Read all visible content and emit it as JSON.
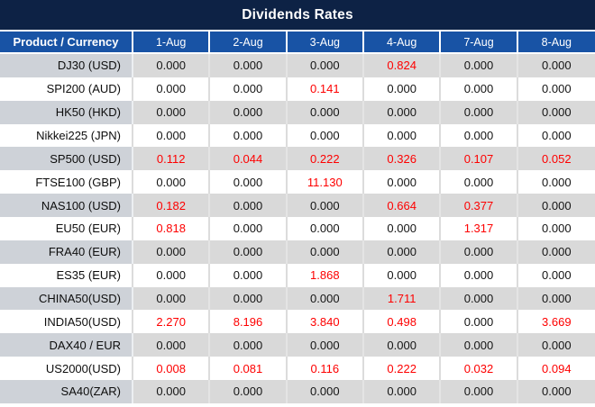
{
  "title": "Dividends Rates",
  "colors": {
    "title_bar_bg": "#0d2245",
    "header_bg": "#1853a5",
    "row_gray_bg": "#d9d9d9",
    "product_gray_bg": "#ced2d8",
    "value_black": "#141414",
    "value_red": "#fe0000",
    "header_text": "#ffffff"
  },
  "table": {
    "product_header": "Product / Currency",
    "date_headers": [
      "1-Aug",
      "2-Aug",
      "3-Aug",
      "4-Aug",
      "7-Aug",
      "8-Aug"
    ],
    "rows": [
      {
        "product": "DJ30 (USD)",
        "values": [
          "0.000",
          "0.000",
          "0.000",
          "0.824",
          "0.000",
          "0.000"
        ],
        "red": [
          false,
          false,
          false,
          true,
          false,
          false
        ]
      },
      {
        "product": "SPI200 (AUD)",
        "values": [
          "0.000",
          "0.000",
          "0.141",
          "0.000",
          "0.000",
          "0.000"
        ],
        "red": [
          false,
          false,
          true,
          false,
          false,
          false
        ]
      },
      {
        "product": "HK50 (HKD)",
        "values": [
          "0.000",
          "0.000",
          "0.000",
          "0.000",
          "0.000",
          "0.000"
        ],
        "red": [
          false,
          false,
          false,
          false,
          false,
          false
        ]
      },
      {
        "product": "Nikkei225 (JPN)",
        "values": [
          "0.000",
          "0.000",
          "0.000",
          "0.000",
          "0.000",
          "0.000"
        ],
        "red": [
          false,
          false,
          false,
          false,
          false,
          false
        ]
      },
      {
        "product": "SP500 (USD)",
        "values": [
          "0.112",
          "0.044",
          "0.222",
          "0.326",
          "0.107",
          "0.052"
        ],
        "red": [
          true,
          true,
          true,
          true,
          true,
          true
        ]
      },
      {
        "product": "FTSE100 (GBP)",
        "values": [
          "0.000",
          "0.000",
          "11.130",
          "0.000",
          "0.000",
          "0.000"
        ],
        "red": [
          false,
          false,
          true,
          false,
          false,
          false
        ]
      },
      {
        "product": "NAS100 (USD)",
        "values": [
          "0.182",
          "0.000",
          "0.000",
          "0.664",
          "0.377",
          "0.000"
        ],
        "red": [
          true,
          false,
          false,
          true,
          true,
          false
        ]
      },
      {
        "product": "EU50 (EUR)",
        "values": [
          "0.818",
          "0.000",
          "0.000",
          "0.000",
          "1.317",
          "0.000"
        ],
        "red": [
          true,
          false,
          false,
          false,
          true,
          false
        ]
      },
      {
        "product": "FRA40 (EUR)",
        "values": [
          "0.000",
          "0.000",
          "0.000",
          "0.000",
          "0.000",
          "0.000"
        ],
        "red": [
          false,
          false,
          false,
          false,
          false,
          false
        ]
      },
      {
        "product": "ES35 (EUR)",
        "values": [
          "0.000",
          "0.000",
          "1.868",
          "0.000",
          "0.000",
          "0.000"
        ],
        "red": [
          false,
          false,
          true,
          false,
          false,
          false
        ]
      },
      {
        "product": "CHINA50(USD)",
        "values": [
          "0.000",
          "0.000",
          "0.000",
          "1.711",
          "0.000",
          "0.000"
        ],
        "red": [
          false,
          false,
          false,
          true,
          false,
          false
        ]
      },
      {
        "product": "INDIA50(USD)",
        "values": [
          "2.270",
          "8.196",
          "3.840",
          "0.498",
          "0.000",
          "3.669"
        ],
        "red": [
          true,
          true,
          true,
          true,
          false,
          true
        ]
      },
      {
        "product": "DAX40 / EUR",
        "values": [
          "0.000",
          "0.000",
          "0.000",
          "0.000",
          "0.000",
          "0.000"
        ],
        "red": [
          false,
          false,
          false,
          false,
          false,
          false
        ]
      },
      {
        "product": "US2000(USD)",
        "values": [
          "0.008",
          "0.081",
          "0.116",
          "0.222",
          "0.032",
          "0.094"
        ],
        "red": [
          true,
          true,
          true,
          true,
          true,
          true
        ]
      },
      {
        "product": "SA40(ZAR)",
        "values": [
          "0.000",
          "0.000",
          "0.000",
          "0.000",
          "0.000",
          "0.000"
        ],
        "red": [
          false,
          false,
          false,
          false,
          false,
          false
        ]
      }
    ]
  }
}
